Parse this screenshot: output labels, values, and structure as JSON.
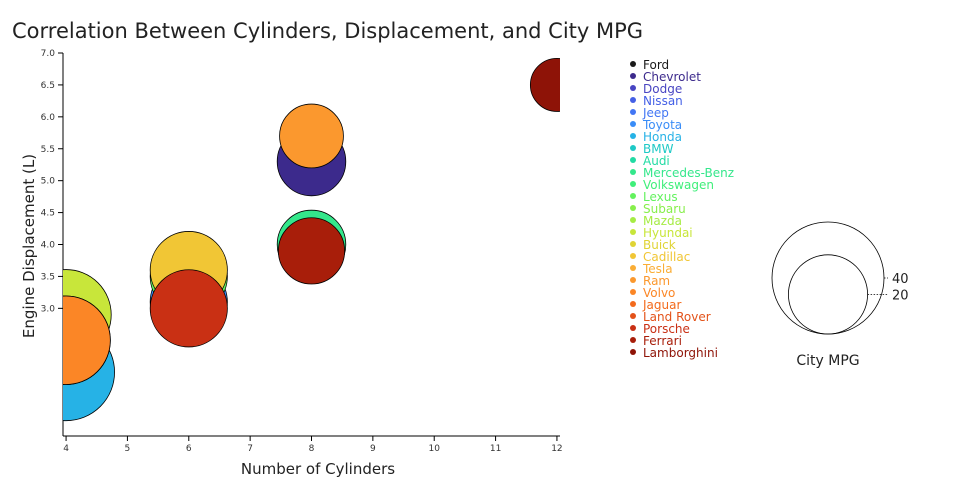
{
  "chart_data": {
    "type": "scatter",
    "title": "Correlation Between Cylinders, Displacement, and City MPG",
    "xlabel": "Number of Cylinders",
    "ylabel": "Engine Displacement (L)",
    "xlim": [
      3.95,
      12.05
    ],
    "ylim": [
      1.0,
      7.0
    ],
    "xticks": [
      4,
      5,
      6,
      7,
      8,
      9,
      10,
      11,
      12
    ],
    "yticks": [
      3.0,
      3.5,
      4.0,
      4.5,
      5.0,
      5.5,
      6.0,
      6.5,
      7.0
    ],
    "size_legend": {
      "title": "City MPG",
      "values": [
        40,
        20
      ]
    },
    "series": [
      {
        "name": "Ford",
        "color": "#1a1a1a",
        "points": []
      },
      {
        "name": "Chevrolet",
        "color": "#3c2a8c",
        "points": [
          {
            "x": 8,
            "y": 5.3,
            "mpg": 15
          }
        ]
      },
      {
        "name": "Dodge",
        "color": "#4845c2",
        "points": []
      },
      {
        "name": "Nissan",
        "color": "#4460e6",
        "points": []
      },
      {
        "name": "Jeep",
        "color": "#4276f4",
        "points": []
      },
      {
        "name": "Toyota",
        "color": "#3a8df7",
        "points": [
          {
            "x": 6,
            "y": 3.1,
            "mpg": 19
          }
        ]
      },
      {
        "name": "Honda",
        "color": "#26b2e6",
        "points": [
          {
            "x": 4,
            "y": 2.0,
            "mpg": 30
          }
        ]
      },
      {
        "name": "BMW",
        "color": "#1ec9c6",
        "points": []
      },
      {
        "name": "Audi",
        "color": "#22dba4",
        "points": []
      },
      {
        "name": "Mercedes-Benz",
        "color": "#34e78b",
        "points": [
          {
            "x": 8,
            "y": 4.0,
            "mpg": 15
          }
        ]
      },
      {
        "name": "Volkswagen",
        "color": "#3fef7a",
        "points": [
          {
            "x": 4,
            "y": 2.5,
            "mpg": 25
          }
        ]
      },
      {
        "name": "Lexus",
        "color": "#63f25e",
        "points": [
          {
            "x": 6,
            "y": 3.5,
            "mpg": 19
          }
        ]
      },
      {
        "name": "Subaru",
        "color": "#87ef4b",
        "points": []
      },
      {
        "name": "Mazda",
        "color": "#a6ec44",
        "points": []
      },
      {
        "name": "Hyundai",
        "color": "#c8e63a",
        "points": [
          {
            "x": 4,
            "y": 2.9,
            "mpg": 26
          }
        ]
      },
      {
        "name": "Buick",
        "color": "#e0d435",
        "points": []
      },
      {
        "name": "Cadillac",
        "color": "#f1c635",
        "points": [
          {
            "x": 6,
            "y": 3.6,
            "mpg": 19
          }
        ]
      },
      {
        "name": "Tesla",
        "color": "#faad35",
        "points": []
      },
      {
        "name": "Ram",
        "color": "#fb982e",
        "points": [
          {
            "x": 8,
            "y": 5.7,
            "mpg": 13
          }
        ]
      },
      {
        "name": "Volvo",
        "color": "#fb8626",
        "points": [
          {
            "x": 4,
            "y": 2.5,
            "mpg": 25
          }
        ]
      },
      {
        "name": "Jaguar",
        "color": "#f36a1c",
        "points": []
      },
      {
        "name": "Land Rover",
        "color": "#e35219",
        "points": []
      },
      {
        "name": "Porsche",
        "color": "#c93014",
        "points": [
          {
            "x": 6,
            "y": 3.0,
            "mpg": 19
          }
        ]
      },
      {
        "name": "Ferrari",
        "color": "#a81e0a",
        "points": [
          {
            "x": 8,
            "y": 3.9,
            "mpg": 14
          }
        ]
      },
      {
        "name": "Lamborghini",
        "color": "#8e1307",
        "points": [
          {
            "x": 12,
            "y": 6.5,
            "mpg": 9
          }
        ]
      }
    ]
  }
}
